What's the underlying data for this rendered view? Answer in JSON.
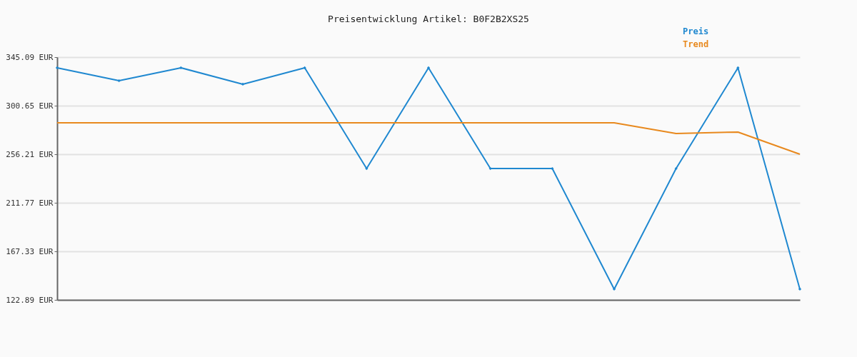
{
  "chart_data": {
    "type": "line",
    "title": "Preisentwicklung Artikel: B0F2B2XS25",
    "categories": [
      null,
      null,
      null,
      null,
      null,
      null,
      null,
      null,
      null,
      null,
      null,
      null,
      null
    ],
    "series": [
      {
        "name": "Preis",
        "color": "#1f88d0",
        "marker": "diamond",
        "values": [
          335.3,
          323.5,
          335.3,
          320.3,
          335.3,
          243.1,
          335.3,
          243.1,
          243.1,
          132.7,
          243.1,
          335.3,
          132.7
        ]
      },
      {
        "name": "Trend",
        "color": "#e8891e",
        "marker": "none",
        "values": [
          285,
          285,
          285,
          285,
          285,
          285,
          285,
          285,
          285,
          285,
          275.2,
          276.5,
          256.2
        ]
      }
    ],
    "ylim": [
      122.89,
      345.09
    ],
    "yticks": [
      {
        "value": 122.89,
        "label": "122.89 EUR"
      },
      {
        "value": 167.33,
        "label": "167.33 EUR"
      },
      {
        "value": 211.77,
        "label": "211.77 EUR"
      },
      {
        "value": 256.21,
        "label": "256.21 EUR"
      },
      {
        "value": 300.65,
        "label": "300.65 EUR"
      },
      {
        "value": 345.09,
        "label": "345.09 EUR"
      }
    ],
    "grid": "y",
    "legend": "top right"
  }
}
